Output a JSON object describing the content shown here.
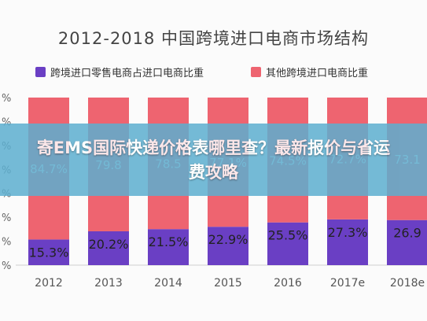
{
  "banner": {
    "text": "寄EMS国际快递价格表哪里查？最新报价与省运费攻略"
  },
  "colors": {
    "series_purple": "#6a3fc4",
    "series_red": "#ee6470",
    "banner_bg": "#5dafd0"
  },
  "chart_data": {
    "type": "bar",
    "stacked": true,
    "title": "2012-2018 中国跨境进口电商市场结构",
    "categories": [
      "2012",
      "2013",
      "2014",
      "2015",
      "2016",
      "2017e",
      "2018e"
    ],
    "series": [
      {
        "name": "跨境进口零售电商占进口电商比重",
        "color": "#6a3fc4",
        "values": [
          15.3,
          20.2,
          21.5,
          22.9,
          25.5,
          27.3,
          26.9
        ],
        "labels": [
          "15.3%",
          "20.2%",
          "21.5%",
          "22.9%",
          "25.5%",
          "27.3%",
          "26.9"
        ]
      },
      {
        "name": "其他跨境进口电商比重",
        "color": "#ee6470",
        "values": [
          84.7,
          79.8,
          78.5,
          77.1,
          74.5,
          72.7,
          73.1
        ],
        "labels": [
          "84.7%",
          "79.8",
          "78.5",
          "77.1%",
          "74.5%",
          "72.7%",
          "73.1"
        ]
      }
    ],
    "y_ticks": [
      "%",
      "%",
      "%",
      "%",
      "%",
      "%",
      "%",
      "%"
    ],
    "ylim": [
      0,
      100
    ],
    "legend_position": "top"
  }
}
